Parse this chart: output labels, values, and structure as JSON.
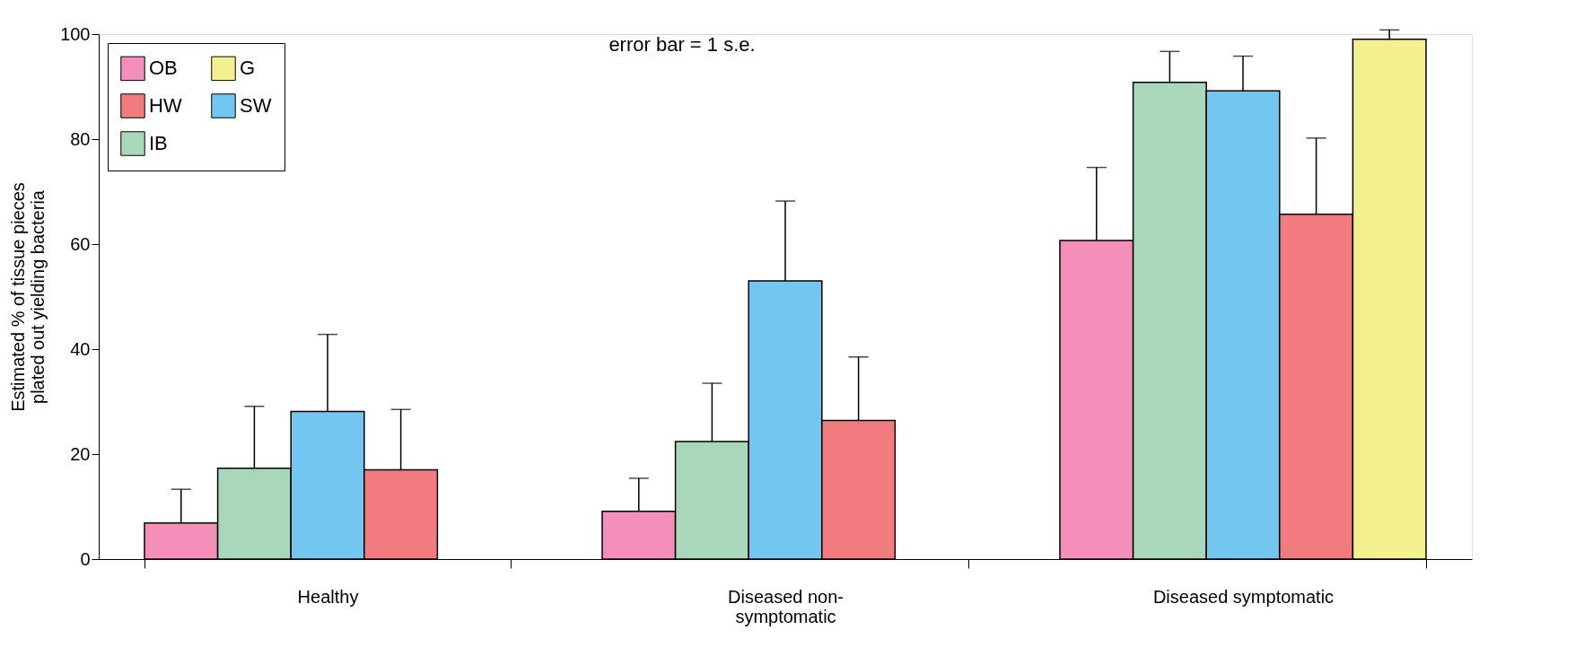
{
  "chart_data": {
    "type": "bar",
    "ylabel": "Estimated % of tissue pieces plated out yielding bacteria",
    "categories": [
      "Healthy",
      "Diseased non-symptomatic",
      "Diseased symptomatic"
    ],
    "series": [
      {
        "name": "OB",
        "color": "#f48fb9",
        "values": [
          6.9,
          9.1,
          60.7
        ],
        "errors": [
          [
            6.9,
            13.3
          ],
          [
            9.1,
            15.4
          ],
          [
            60.7,
            74.6
          ]
        ]
      },
      {
        "name": "IB",
        "color": "#a8d8b9",
        "values": [
          17.3,
          22.4,
          90.8
        ],
        "errors": [
          [
            17.3,
            29.1
          ],
          [
            22.4,
            33.5
          ],
          [
            90.8,
            96.7
          ]
        ]
      },
      {
        "name": "SW",
        "color": "#72c6ef",
        "values": [
          28.1,
          53.0,
          89.2
        ],
        "errors": [
          [
            28.1,
            42.8
          ],
          [
            53.0,
            68.2
          ],
          [
            89.2,
            95.8
          ]
        ]
      },
      {
        "name": "HW",
        "color": "#f27b7f",
        "values": [
          17.0,
          26.4,
          65.7
        ],
        "errors": [
          [
            17.0,
            28.5
          ],
          [
            26.4,
            38.5
          ],
          [
            65.7,
            80.2
          ]
        ]
      },
      {
        "name": "G",
        "color": "#f2f08f",
        "values": [
          null,
          null,
          99.0
        ],
        "errors": [
          null,
          null,
          [
            99.0,
            100.8
          ]
        ]
      }
    ],
    "ylim": [
      0,
      100
    ],
    "yticks": [
      0,
      20,
      40,
      60,
      80,
      100
    ],
    "grid": false,
    "legend": "top left",
    "annotations": [
      "error bar = 1 s.e."
    ]
  }
}
